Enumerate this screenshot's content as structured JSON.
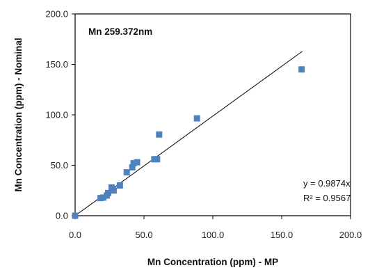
{
  "chart_data": {
    "type": "scatter",
    "title": "",
    "annotation": "Mn 259.372nm",
    "xlabel": "Mn Concentration (ppm) - MP",
    "ylabel": "Mn Concentration (ppm) - Nominal",
    "xlim": [
      0,
      200
    ],
    "ylim": [
      0,
      200
    ],
    "x_ticks": [
      "0.0",
      "50.0",
      "100.0",
      "150.0",
      "200.0"
    ],
    "y_ticks": [
      "0.0",
      "50.0",
      "100.0",
      "150.0",
      "200.0"
    ],
    "grid": false,
    "legend": "none",
    "marker_color": "#4f81bd",
    "series": [
      {
        "marker": "square",
        "points": [
          {
            "x": 0.0,
            "y": 0.0
          },
          {
            "x": 18.5,
            "y": 17.5
          },
          {
            "x": 20.5,
            "y": 18.0
          },
          {
            "x": 23.0,
            "y": 20.0
          },
          {
            "x": 24.0,
            "y": 22.5
          },
          {
            "x": 26.5,
            "y": 28.0
          },
          {
            "x": 28.0,
            "y": 25.0
          },
          {
            "x": 32.5,
            "y": 30.0
          },
          {
            "x": 37.5,
            "y": 43.0
          },
          {
            "x": 41.5,
            "y": 48.0
          },
          {
            "x": 42.5,
            "y": 52.0
          },
          {
            "x": 45.0,
            "y": 53.0
          },
          {
            "x": 57.5,
            "y": 56.0
          },
          {
            "x": 59.5,
            "y": 56.0
          },
          {
            "x": 61.0,
            "y": 80.5
          },
          {
            "x": 88.5,
            "y": 96.5
          },
          {
            "x": 164.5,
            "y": 145.0
          }
        ]
      }
    ],
    "trendline": {
      "slope": 0.9874,
      "intercept": 0,
      "x_range": [
        0,
        165
      ],
      "color": "#000000",
      "equation": "y = 0.9874x",
      "r2_label": "R² = 0.9567"
    }
  }
}
